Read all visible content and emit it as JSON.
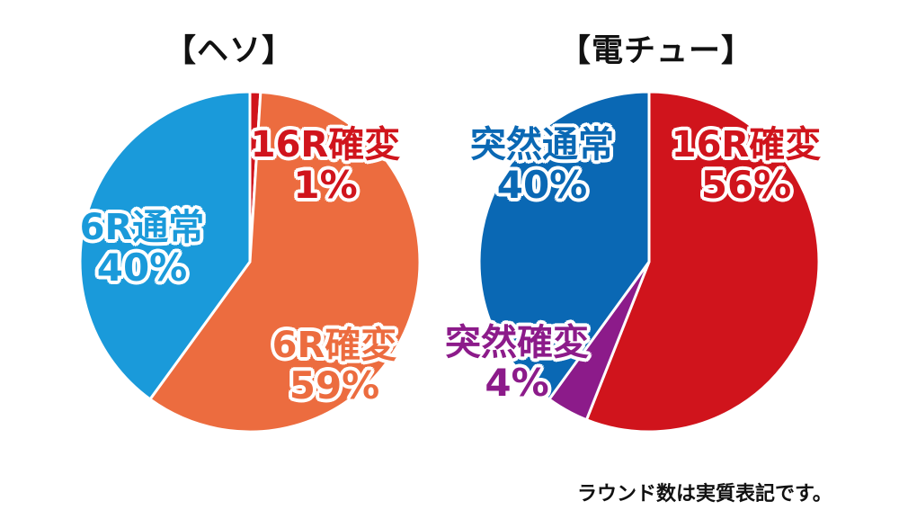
{
  "colors": {
    "six_r_kakuhen": "#EC6C3F",
    "six_r_tsujo": "#1A9ADA",
    "sixteen_r_kakuhen": "#D0141C",
    "totsuzen_tsujo": "#0A68B4",
    "totsuzen_kakuhen": "#8C1B8A",
    "label_text": "#FFFFFF"
  },
  "footnote": "ラウンド数は実質表記です。",
  "chart_data": [
    {
      "type": "pie",
      "title": "【ヘソ】",
      "slices": [
        {
          "label": "16R確変",
          "value": 1,
          "display": "1%",
          "color": "#D0141C"
        },
        {
          "label": "6R確変",
          "value": 59,
          "display": "59%",
          "color": "#EC6C3F"
        },
        {
          "label": "6R通常",
          "value": 40,
          "display": "40%",
          "color": "#1A9ADA"
        }
      ]
    },
    {
      "type": "pie",
      "title": "【電チュー】",
      "slices": [
        {
          "label": "16R確変",
          "value": 56,
          "display": "56%",
          "color": "#D0141C"
        },
        {
          "label": "突然確変",
          "value": 4,
          "display": "4%",
          "color": "#8C1B8A"
        },
        {
          "label": "突然通常",
          "value": 40,
          "display": "40%",
          "color": "#0A68B4"
        }
      ]
    }
  ]
}
